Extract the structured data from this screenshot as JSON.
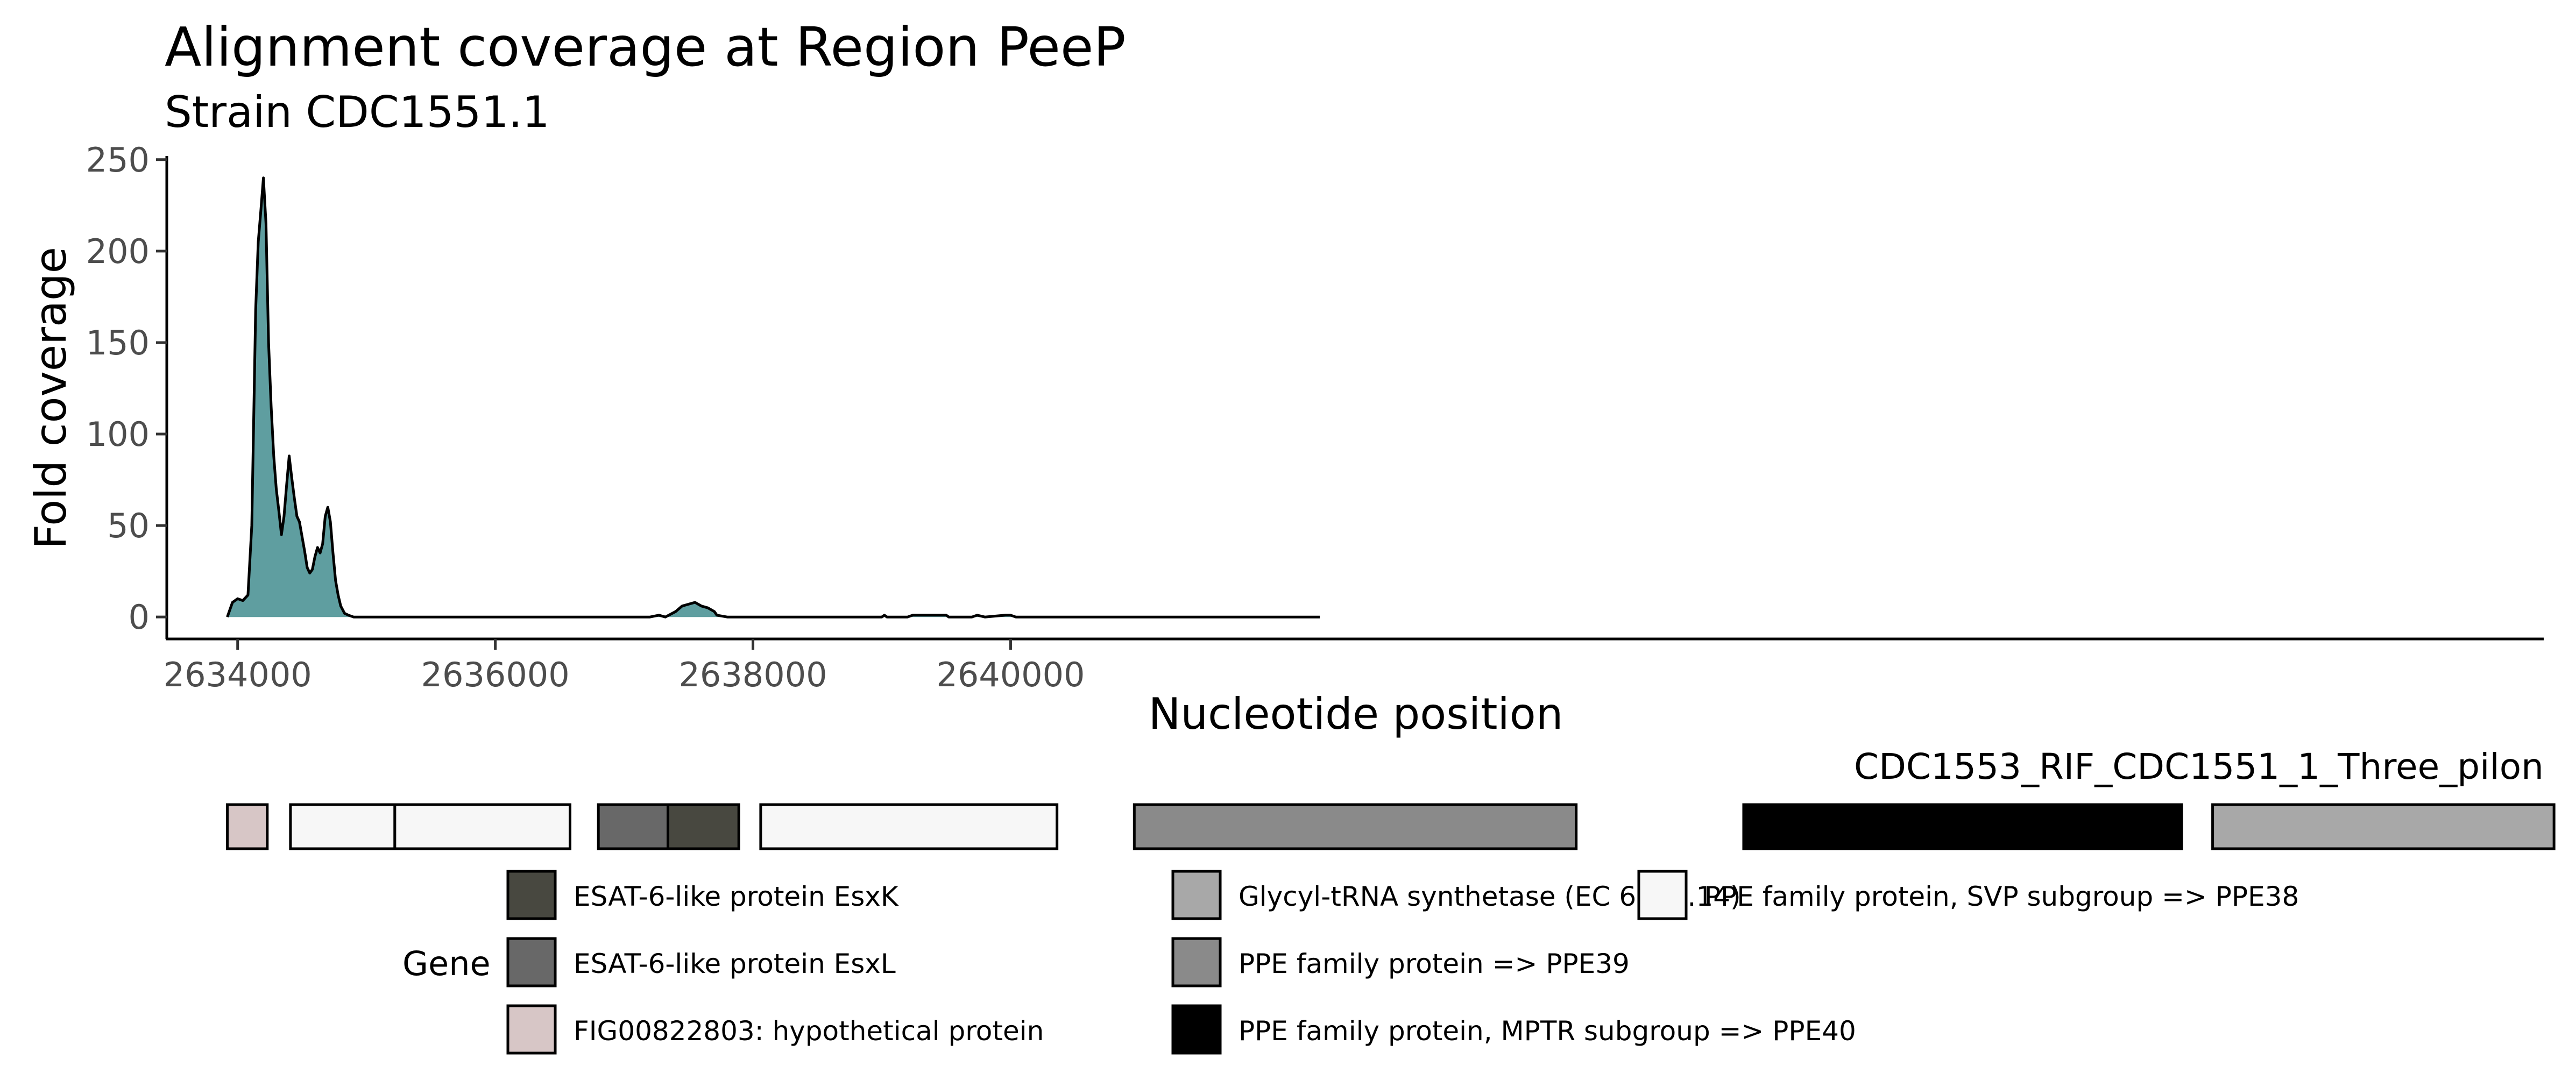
{
  "chart_data": {
    "type": "area",
    "title": "Alignment coverage at Region PeeP",
    "subtitle": "Strain CDC1551.1",
    "xlabel": "Nucleotide position",
    "ylabel": "Fold coverage",
    "xlim": [
      2633450,
      2651900
    ],
    "ylim": [
      -12,
      252
    ],
    "x_ticks": [
      2634000,
      2636000,
      2638000,
      2640000
    ],
    "x_tick_labels": [
      "2634000",
      "2636000",
      "2638000",
      "2640000"
    ],
    "y_ticks": [
      0,
      50,
      100,
      150,
      200,
      250
    ],
    "y_tick_labels": [
      "0",
      "50",
      "100",
      "150",
      "200",
      "250"
    ],
    "grid": false,
    "fill_color": "#5f9ea0",
    "line_color": "#000000",
    "series": [
      {
        "x": [
          2633920,
          2633960,
          2634000,
          2634040,
          2634080,
          2634110,
          2634140,
          2634160,
          2634180,
          2634200,
          2634220,
          2634240,
          2634260,
          2634280,
          2634300,
          2634320,
          2634340,
          2634360,
          2634380,
          2634400,
          2634420,
          2634440,
          2634460,
          2634480,
          2634500,
          2634520,
          2634540,
          2634560,
          2634580,
          2634600,
          2634620,
          2634640,
          2634660,
          2634680,
          2634700,
          2634720,
          2634740,
          2634760,
          2634780,
          2634800,
          2634830,
          2634860,
          2634900,
          2635000,
          2636000,
          2637000,
          2637200,
          2637270,
          2637320,
          2637400,
          2637450,
          2637500,
          2637550,
          2637600,
          2637650,
          2637700,
          2637720,
          2637800,
          2638500,
          2639000,
          2639020,
          2639040,
          2639200,
          2639240,
          2639400,
          2639500,
          2639520,
          2639700,
          2639740,
          2639800,
          2639960,
          2640000,
          2640040,
          2641000,
          2642000,
          2642400
        ],
        "y": [
          0,
          8,
          10,
          9,
          12,
          50,
          168,
          205,
          222,
          240,
          215,
          150,
          115,
          88,
          70,
          58,
          45,
          55,
          72,
          88,
          76,
          65,
          55,
          52,
          44,
          36,
          27,
          24,
          26,
          33,
          38,
          35,
          40,
          55,
          60,
          52,
          35,
          20,
          12,
          6,
          2,
          1,
          0,
          0,
          0,
          0,
          0,
          1,
          0,
          3,
          6,
          7,
          8,
          6,
          5,
          3,
          1,
          0,
          0,
          0,
          1,
          0,
          0,
          1,
          1,
          1,
          0,
          0,
          1,
          0,
          1,
          1,
          0,
          0,
          0,
          0
        ]
      }
    ],
    "track": {
      "label": "CDC1553_RIF_CDC1551_1_Three_pilon",
      "genes": [
        {
          "start": 2633920,
          "end": 2634230,
          "color": "#d7c6c6",
          "product": "FIG00822803: hypothetical protein"
        },
        {
          "start": 2634410,
          "end": 2635220,
          "color": "#f7f7f7",
          "product": "PPE family protein, SVP subgroup => PPE38"
        },
        {
          "start": 2635220,
          "end": 2636580,
          "color": "#f7f7f7",
          "product": "PPE family protein, SVP subgroup => PPE38"
        },
        {
          "start": 2636800,
          "end": 2637340,
          "color": "#686868",
          "product": "ESAT-6-like protein EsxL"
        },
        {
          "start": 2637340,
          "end": 2637890,
          "color": "#484840",
          "product": "ESAT-6-like protein EsxK"
        },
        {
          "start": 2638060,
          "end": 2640360,
          "color": "#f7f7f7",
          "product": "PPE family protein, SVP subgroup => PPE38"
        },
        {
          "start": 2640960,
          "end": 2644390,
          "color": "#8a8a8a",
          "product": "PPE family protein => PPE39"
        },
        {
          "start": 2645690,
          "end": 2649090,
          "color": "#000000",
          "product": "PPE family protein, MPTR subgroup => PPE40"
        },
        {
          "start": 2649330,
          "end": 2651980,
          "color": "#a8a8a8",
          "product": "Glycyl-tRNA synthetase (EC 6.1.1.14)"
        }
      ]
    },
    "legend": {
      "title": "Gene",
      "position": "bottom",
      "entries": [
        {
          "label": "ESAT-6-like protein EsxK",
          "color": "#484840"
        },
        {
          "label": "ESAT-6-like protein EsxL",
          "color": "#686868"
        },
        {
          "label": "FIG00822803: hypothetical protein",
          "color": "#d7c6c6"
        },
        {
          "label": "Glycyl-tRNA synthetase (EC 6.1.1.14)",
          "color": "#a8a8a8"
        },
        {
          "label": "PPE family protein => PPE39",
          "color": "#8a8a8a"
        },
        {
          "label": "PPE family protein, MPTR subgroup => PPE40",
          "color": "#000000"
        },
        {
          "label": "PPE family protein, SVP subgroup => PPE38",
          "color": "#f7f7f7"
        }
      ]
    }
  }
}
